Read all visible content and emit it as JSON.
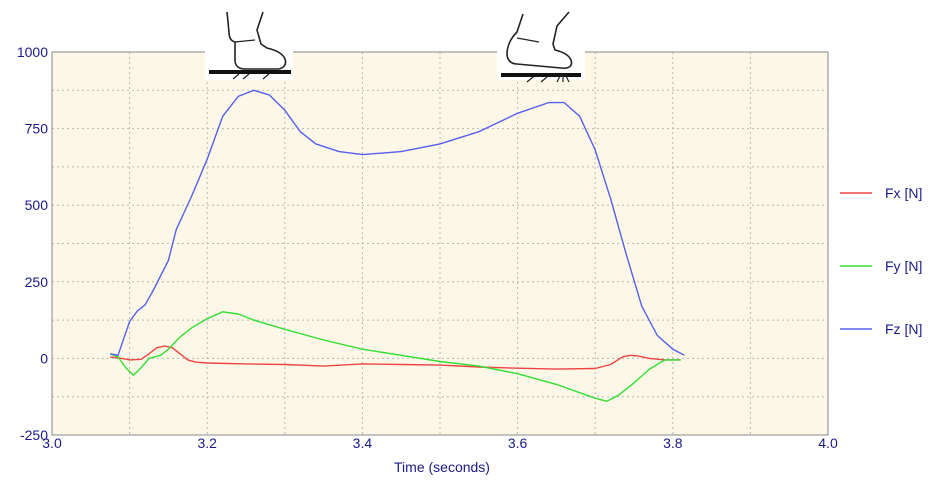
{
  "chart_data": {
    "type": "line",
    "xlabel": "Time (seconds)",
    "ylabel": "",
    "xlim": [
      3.0,
      4.0
    ],
    "ylim": [
      -250,
      1000
    ],
    "xticks": [
      3.0,
      3.2,
      3.4,
      3.6,
      3.8,
      4.0
    ],
    "xtick_labels": [
      "3.0",
      "3.2",
      "3.4",
      "3.6",
      "3.8",
      "4.0"
    ],
    "yticks": [
      -250,
      0,
      250,
      500,
      750,
      1000
    ],
    "ytick_labels": [
      "-250",
      "0",
      "250",
      "500",
      "750",
      "1000"
    ],
    "grid": true,
    "grid_style": "dotted",
    "plot_background": "#fcf7e6",
    "legend_position": "right",
    "icons": [
      "heel-strike-foot-icon",
      "toe-off-foot-icon"
    ],
    "series": [
      {
        "name": "Fx [N]",
        "color": "#ee4444",
        "points": [
          [
            3.075,
            5
          ],
          [
            3.09,
            0
          ],
          [
            3.1,
            -5
          ],
          [
            3.115,
            -3
          ],
          [
            3.125,
            15
          ],
          [
            3.135,
            35
          ],
          [
            3.145,
            40
          ],
          [
            3.155,
            35
          ],
          [
            3.165,
            15
          ],
          [
            3.175,
            -5
          ],
          [
            3.185,
            -12
          ],
          [
            3.2,
            -15
          ],
          [
            3.25,
            -18
          ],
          [
            3.3,
            -20
          ],
          [
            3.35,
            -25
          ],
          [
            3.4,
            -18
          ],
          [
            3.45,
            -20
          ],
          [
            3.5,
            -22
          ],
          [
            3.55,
            -28
          ],
          [
            3.6,
            -32
          ],
          [
            3.65,
            -35
          ],
          [
            3.7,
            -33
          ],
          [
            3.72,
            -20
          ],
          [
            3.735,
            5
          ],
          [
            3.745,
            10
          ],
          [
            3.755,
            8
          ],
          [
            3.77,
            0
          ],
          [
            3.79,
            -5
          ],
          [
            3.81,
            -5
          ]
        ]
      },
      {
        "name": "Fy [N]",
        "color": "#33dd33",
        "points": [
          [
            3.075,
            15
          ],
          [
            3.085,
            5
          ],
          [
            3.095,
            -30
          ],
          [
            3.105,
            -55
          ],
          [
            3.115,
            -30
          ],
          [
            3.125,
            0
          ],
          [
            3.14,
            10
          ],
          [
            3.15,
            30
          ],
          [
            3.165,
            70
          ],
          [
            3.18,
            100
          ],
          [
            3.2,
            130
          ],
          [
            3.22,
            152
          ],
          [
            3.24,
            145
          ],
          [
            3.26,
            125
          ],
          [
            3.3,
            95
          ],
          [
            3.35,
            60
          ],
          [
            3.4,
            30
          ],
          [
            3.45,
            10
          ],
          [
            3.5,
            -10
          ],
          [
            3.55,
            -25
          ],
          [
            3.6,
            -50
          ],
          [
            3.65,
            -85
          ],
          [
            3.7,
            -130
          ],
          [
            3.715,
            -140
          ],
          [
            3.73,
            -120
          ],
          [
            3.75,
            -80
          ],
          [
            3.77,
            -35
          ],
          [
            3.79,
            -5
          ],
          [
            3.81,
            -5
          ]
        ]
      },
      {
        "name": "Fz [N]",
        "color": "#5560ee",
        "points": [
          [
            3.075,
            15
          ],
          [
            3.085,
            10
          ],
          [
            3.1,
            120
          ],
          [
            3.11,
            155
          ],
          [
            3.12,
            175
          ],
          [
            3.13,
            220
          ],
          [
            3.15,
            320
          ],
          [
            3.16,
            420
          ],
          [
            3.18,
            530
          ],
          [
            3.2,
            650
          ],
          [
            3.22,
            790
          ],
          [
            3.24,
            855
          ],
          [
            3.26,
            875
          ],
          [
            3.28,
            860
          ],
          [
            3.3,
            810
          ],
          [
            3.32,
            740
          ],
          [
            3.34,
            700
          ],
          [
            3.37,
            675
          ],
          [
            3.4,
            665
          ],
          [
            3.45,
            675
          ],
          [
            3.5,
            700
          ],
          [
            3.55,
            740
          ],
          [
            3.6,
            800
          ],
          [
            3.64,
            835
          ],
          [
            3.66,
            835
          ],
          [
            3.68,
            790
          ],
          [
            3.7,
            680
          ],
          [
            3.72,
            520
          ],
          [
            3.74,
            340
          ],
          [
            3.76,
            170
          ],
          [
            3.78,
            75
          ],
          [
            3.8,
            30
          ],
          [
            3.815,
            10
          ]
        ]
      }
    ]
  }
}
